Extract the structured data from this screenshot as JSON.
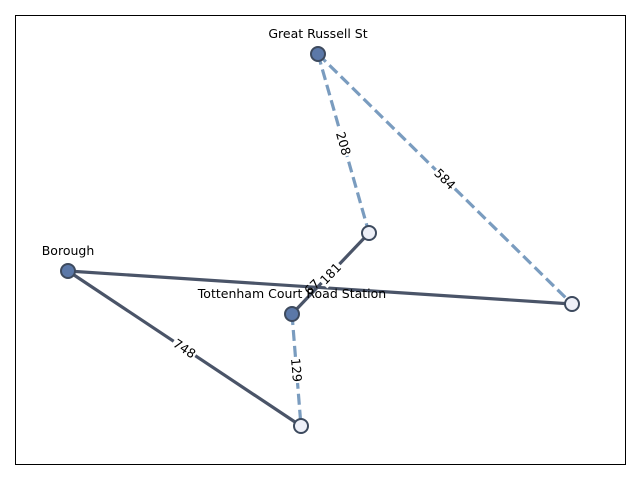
{
  "graph": {
    "colors": {
      "solid_edge": "#4a5468",
      "dashed_edge": "#7a9cbf",
      "filled_node": "#5b78a8",
      "hollow_node": "#eef0f8",
      "node_stroke": "#3d4a5e",
      "frame": "#000000"
    },
    "nodes": [
      {
        "id": "great-russell-st",
        "label": "Great Russell St",
        "style": "filled"
      },
      {
        "id": "borough",
        "label": "Borough",
        "style": "filled"
      },
      {
        "id": "tottenham-court-road-station",
        "label": "Tottenham Court Road Station",
        "style": "filled"
      },
      {
        "id": "n-mid",
        "label": "",
        "style": "hollow"
      },
      {
        "id": "n-right",
        "label": "",
        "style": "hollow"
      },
      {
        "id": "n-bottom",
        "label": "",
        "style": "hollow"
      }
    ],
    "edges": [
      {
        "from": "borough",
        "to": "n-right",
        "label": "",
        "style": "solid"
      },
      {
        "from": "tottenham-court-road-station",
        "to": "n-mid",
        "label": "181",
        "style": "solid"
      },
      {
        "from": "borough",
        "to": "n-bottom",
        "label": "748",
        "style": "solid"
      },
      {
        "from": "great-russell-st",
        "to": "n-mid",
        "label": "208",
        "style": "dashed"
      },
      {
        "from": "great-russell-st",
        "to": "n-right",
        "label": "584",
        "style": "dashed"
      },
      {
        "from": "tottenham-court-road-station",
        "to": "n-bottom",
        "label": "129",
        "style": "dashed"
      }
    ],
    "extra_labels": [
      "67"
    ]
  }
}
